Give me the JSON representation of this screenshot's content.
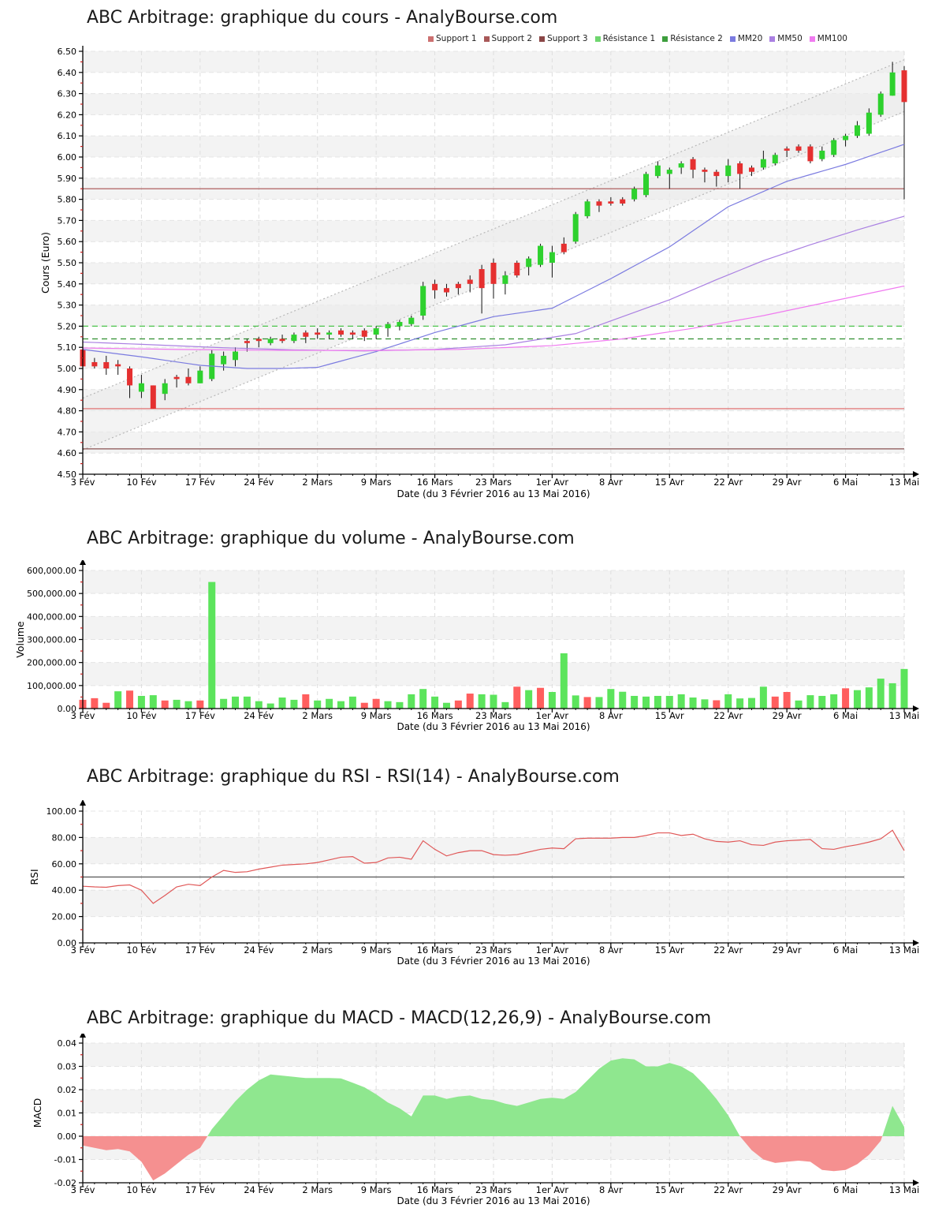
{
  "page": {
    "background": "#ffffff"
  },
  "shared": {
    "xlabel": "Date (du 3 Février 2016 au 13 Mai 2016)",
    "x_tick_labels": [
      "3 Fév",
      "10 Fév",
      "17 Fév",
      "24 Fév",
      "2 Mars",
      "9 Mars",
      "16 Mars",
      "23 Mars",
      "1er Avr",
      "8 Avr",
      "15 Avr",
      "22 Avr",
      "29 Avr",
      "6 Mai",
      "13 Mai"
    ],
    "x_tick_indices": [
      0,
      5,
      10,
      15,
      20,
      25,
      30,
      35,
      40,
      45,
      50,
      55,
      60,
      65,
      70
    ],
    "n_points": 71
  },
  "colors": {
    "candle_up": "#2ed12e",
    "candle_down": "#e53030",
    "wick": "#111111",
    "vol_up": "#5ce45c",
    "vol_down": "#ff5e5e",
    "mm20": "#7b7be0",
    "mm50": "#aa80e2",
    "mm100": "#f07bf0",
    "rsi_line": "#e05858",
    "rsi_mid": "#555555",
    "macd_pos": "#8fe78f",
    "macd_neg": "#f59090",
    "grid": "#e4e4e4",
    "vgrid": "#dedede",
    "stripe": "#f3f3f3",
    "axis": "#000000",
    "minor_tick": "#cc2222",
    "channel_fill": "#ebebeb",
    "channel_line": "#b8b8b8"
  },
  "chart_data": [
    {
      "id": "cours",
      "type": "candlestick",
      "title": "ABC Arbitrage: graphique du cours - AnalyBourse.com",
      "ylabel": "Cours (Euro)",
      "ymin": 4.5,
      "ymax": 6.5,
      "ystep": 0.1,
      "y_tick_labels": [
        "6.50",
        "6.40",
        "6.30",
        "6.20",
        "6.10",
        "6.00",
        "5.90",
        "5.80",
        "5.70",
        "5.60",
        "5.50",
        "5.40",
        "5.30",
        "5.20",
        "5.10",
        "5.00",
        "4.90",
        "4.80",
        "4.70",
        "4.60",
        "4.50"
      ],
      "legend": [
        {
          "label": "Support 1",
          "color": "#cc7070"
        },
        {
          "label": "Support 2",
          "color": "#a85858"
        },
        {
          "label": "Support 3",
          "color": "#8a4646"
        },
        {
          "label": "Résistance 1",
          "color": "#6fd66f"
        },
        {
          "label": "Résistance 2",
          "color": "#3d9e3d"
        },
        {
          "label": "MM20",
          "color": "#7b7be0"
        },
        {
          "label": "MM50",
          "color": "#aa80e2"
        },
        {
          "label": "MM100",
          "color": "#f07bf0"
        }
      ],
      "hlines": [
        {
          "name": "support-3",
          "value": 5.85,
          "color": "#a85050",
          "dash": false
        },
        {
          "name": "support-1",
          "value": 4.81,
          "color": "#e06464",
          "dash": false
        },
        {
          "name": "support-2",
          "value": 4.62,
          "color": "#8a5252",
          "dash": false
        },
        {
          "name": "resistance-1",
          "value": 5.2,
          "color": "#4bc44b",
          "dash": true
        },
        {
          "name": "resistance-2",
          "value": 5.14,
          "color": "#2f8f2f",
          "dash": true
        }
      ],
      "channel": {
        "top": [
          4.86,
          6.46
        ],
        "bottom": [
          4.615,
          6.215
        ]
      },
      "mm20_anchors": [
        [
          0,
          5.09
        ],
        [
          5,
          5.055
        ],
        [
          10,
          5.015
        ],
        [
          14,
          5.0
        ],
        [
          17,
          5.0
        ],
        [
          20,
          5.005
        ],
        [
          25,
          5.08
        ],
        [
          30,
          5.17
        ],
        [
          35,
          5.245
        ],
        [
          40,
          5.285
        ],
        [
          45,
          5.425
        ],
        [
          50,
          5.575
        ],
        [
          55,
          5.765
        ],
        [
          60,
          5.885
        ],
        [
          65,
          5.965
        ],
        [
          70,
          6.06
        ]
      ],
      "mm50_anchors": [
        [
          0,
          5.125
        ],
        [
          6,
          5.112
        ],
        [
          12,
          5.098
        ],
        [
          18,
          5.088
        ],
        [
          24,
          5.083
        ],
        [
          30,
          5.09
        ],
        [
          36,
          5.112
        ],
        [
          42,
          5.165
        ],
        [
          46,
          5.245
        ],
        [
          50,
          5.325
        ],
        [
          54,
          5.42
        ],
        [
          58,
          5.51
        ],
        [
          62,
          5.585
        ],
        [
          66,
          5.655
        ],
        [
          70,
          5.72
        ]
      ],
      "mm100_anchors": [
        [
          0,
          5.097
        ],
        [
          8,
          5.09
        ],
        [
          16,
          5.086
        ],
        [
          24,
          5.085
        ],
        [
          32,
          5.09
        ],
        [
          40,
          5.108
        ],
        [
          46,
          5.14
        ],
        [
          52,
          5.19
        ],
        [
          58,
          5.25
        ],
        [
          64,
          5.32
        ],
        [
          70,
          5.39
        ]
      ],
      "candles_ohlc": [
        [
          5.09,
          5.1,
          4.99,
          5.01
        ],
        [
          5.03,
          5.05,
          5.0,
          5.01
        ],
        [
          5.03,
          5.06,
          4.97,
          5.0
        ],
        [
          5.02,
          5.04,
          4.97,
          5.01
        ],
        [
          5.0,
          5.01,
          4.86,
          4.92
        ],
        [
          4.89,
          4.97,
          4.86,
          4.93
        ],
        [
          4.92,
          4.92,
          4.81,
          4.81
        ],
        [
          4.88,
          4.95,
          4.85,
          4.93
        ],
        [
          4.96,
          4.97,
          4.91,
          4.95
        ],
        [
          4.96,
          5.0,
          4.92,
          4.93
        ],
        [
          4.93,
          5.01,
          4.93,
          4.99
        ],
        [
          4.95,
          5.09,
          4.94,
          5.07
        ],
        [
          5.02,
          5.08,
          4.99,
          5.06
        ],
        [
          5.04,
          5.1,
          5.01,
          5.08
        ],
        [
          5.13,
          5.14,
          5.08,
          5.12
        ],
        [
          5.14,
          5.15,
          5.1,
          5.13
        ],
        [
          5.12,
          5.15,
          5.11,
          5.14
        ],
        [
          5.14,
          5.16,
          5.12,
          5.13
        ],
        [
          5.13,
          5.17,
          5.12,
          5.16
        ],
        [
          5.17,
          5.18,
          5.12,
          5.15
        ],
        [
          5.17,
          5.19,
          5.14,
          5.16
        ],
        [
          5.16,
          5.18,
          5.14,
          5.17
        ],
        [
          5.18,
          5.19,
          5.15,
          5.16
        ],
        [
          5.17,
          5.18,
          5.14,
          5.16
        ],
        [
          5.18,
          5.19,
          5.13,
          5.15
        ],
        [
          5.16,
          5.2,
          5.14,
          5.19
        ],
        [
          5.19,
          5.22,
          5.15,
          5.21
        ],
        [
          5.2,
          5.23,
          5.18,
          5.22
        ],
        [
          5.21,
          5.25,
          5.2,
          5.24
        ],
        [
          5.25,
          5.41,
          5.23,
          5.39
        ],
        [
          5.4,
          5.42,
          5.33,
          5.37
        ],
        [
          5.38,
          5.4,
          5.34,
          5.36
        ],
        [
          5.4,
          5.41,
          5.35,
          5.38
        ],
        [
          5.42,
          5.44,
          5.36,
          5.4
        ],
        [
          5.47,
          5.49,
          5.26,
          5.38
        ],
        [
          5.5,
          5.52,
          5.33,
          5.4
        ],
        [
          5.4,
          5.46,
          5.35,
          5.44
        ],
        [
          5.5,
          5.51,
          5.43,
          5.44
        ],
        [
          5.48,
          5.53,
          5.44,
          5.52
        ],
        [
          5.49,
          5.59,
          5.48,
          5.58
        ],
        [
          5.5,
          5.58,
          5.43,
          5.55
        ],
        [
          5.59,
          5.62,
          5.54,
          5.55
        ],
        [
          5.6,
          5.74,
          5.59,
          5.73
        ],
        [
          5.72,
          5.8,
          5.71,
          5.79
        ],
        [
          5.79,
          5.8,
          5.74,
          5.77
        ],
        [
          5.79,
          5.81,
          5.77,
          5.78
        ],
        [
          5.8,
          5.81,
          5.77,
          5.78
        ],
        [
          5.8,
          5.86,
          5.79,
          5.85
        ],
        [
          5.82,
          5.93,
          5.81,
          5.92
        ],
        [
          5.91,
          5.98,
          5.9,
          5.96
        ],
        [
          5.92,
          5.95,
          5.85,
          5.94
        ],
        [
          5.95,
          5.98,
          5.92,
          5.97
        ],
        [
          5.99,
          6.0,
          5.9,
          5.94
        ],
        [
          5.94,
          5.95,
          5.88,
          5.93
        ],
        [
          5.93,
          5.94,
          5.86,
          5.91
        ],
        [
          5.91,
          5.99,
          5.88,
          5.96
        ],
        [
          5.97,
          5.98,
          5.85,
          5.92
        ],
        [
          5.95,
          5.96,
          5.91,
          5.93
        ],
        [
          5.95,
          6.03,
          5.94,
          5.99
        ],
        [
          5.97,
          6.02,
          5.96,
          6.01
        ],
        [
          6.04,
          6.05,
          6.0,
          6.03
        ],
        [
          6.05,
          6.06,
          6.02,
          6.03
        ],
        [
          6.05,
          6.06,
          5.97,
          5.98
        ],
        [
          5.99,
          6.05,
          5.98,
          6.03
        ],
        [
          6.01,
          6.09,
          6.0,
          6.08
        ],
        [
          6.08,
          6.11,
          6.05,
          6.1
        ],
        [
          6.1,
          6.17,
          6.09,
          6.15
        ],
        [
          6.11,
          6.23,
          6.1,
          6.21
        ],
        [
          6.2,
          6.31,
          6.19,
          6.3
        ],
        [
          6.29,
          6.45,
          6.29,
          6.4
        ],
        [
          6.41,
          6.43,
          5.8,
          6.26
        ]
      ]
    },
    {
      "id": "volume",
      "type": "bar",
      "title": "ABC Arbitrage: graphique du volume - AnalyBourse.com",
      "ylabel": "Volume",
      "ymin": 0,
      "ymax": 600000,
      "ystep": 100000,
      "y_tick_labels": [
        "600,000.00",
        "500,000.00",
        "400,000.00",
        "300,000.00",
        "200,000.00",
        "100,000.00",
        "0.00"
      ],
      "values_thousands": [
        38,
        45,
        25,
        75,
        78,
        55,
        58,
        35,
        38,
        32,
        35,
        550,
        42,
        52,
        52,
        32,
        22,
        48,
        38,
        62,
        35,
        42,
        32,
        52,
        25,
        42,
        32,
        28,
        62,
        85,
        52,
        25,
        35,
        65,
        62,
        60,
        28,
        95,
        80,
        90,
        72,
        240,
        57,
        50,
        50,
        85,
        73,
        55,
        52,
        55,
        55,
        62,
        48,
        40,
        36,
        62,
        44,
        46,
        95,
        52,
        72,
        35,
        58,
        55,
        62,
        88,
        80,
        92,
        130,
        110,
        172
      ],
      "signs": "ddduduuduuduuuuuuuuduuuudduuuuuudduuududuuuduuuuuuuuuuduuuudduuuuduuuuuud"
    },
    {
      "id": "rsi",
      "type": "line",
      "title": "ABC Arbitrage: graphique du RSI - RSI(14) - AnalyBourse.com",
      "ylabel": "RSI",
      "ymin": 0,
      "ymax": 100,
      "ystep": 20,
      "y_tick_labels": [
        "100.00",
        "80.00",
        "60.00",
        "40.00",
        "20.00",
        "0.00"
      ],
      "midline": 50,
      "values": [
        43,
        42.5,
        42.2,
        43.5,
        44,
        40,
        30,
        36,
        42.5,
        44.5,
        43.5,
        50,
        55,
        53.5,
        54,
        56,
        57.5,
        59,
        59.5,
        60,
        61,
        63,
        65,
        65.5,
        60.5,
        61,
        64.5,
        65,
        63.5,
        77.5,
        71,
        66,
        68.5,
        70,
        70,
        67,
        66.5,
        67,
        69,
        71,
        72,
        71.5,
        79,
        79.5,
        79.5,
        79.5,
        80,
        80,
        81.5,
        83.5,
        83.5,
        81.5,
        82.5,
        79,
        77,
        76.5,
        77.5,
        74.5,
        74,
        76.5,
        77.5,
        78,
        78.5,
        71.5,
        71,
        73,
        74.5,
        76.5,
        79,
        85.5,
        70
      ]
    },
    {
      "id": "macd",
      "type": "area",
      "title": "ABC Arbitrage: graphique du MACD - MACD(12,26,9) - AnalyBourse.com",
      "ylabel": "MACD",
      "ymin": -0.02,
      "ymax": 0.04,
      "ystep": 0.01,
      "y_tick_labels": [
        "0.04",
        "0.03",
        "0.02",
        "0.01",
        "0.00",
        "-0.01",
        "-0.02"
      ],
      "values": [
        -0.004,
        -0.005,
        -0.006,
        -0.0055,
        -0.0065,
        -0.011,
        -0.019,
        -0.016,
        -0.012,
        -0.008,
        -0.005,
        0.003,
        0.009,
        0.015,
        0.02,
        0.024,
        0.0265,
        0.026,
        0.0255,
        0.025,
        0.025,
        0.025,
        0.0248,
        0.023,
        0.021,
        0.018,
        0.0145,
        0.012,
        0.0085,
        0.0175,
        0.0175,
        0.016,
        0.017,
        0.0175,
        0.016,
        0.0155,
        0.014,
        0.013,
        0.0145,
        0.016,
        0.0165,
        0.016,
        0.019,
        0.024,
        0.029,
        0.0325,
        0.0335,
        0.033,
        0.03,
        0.03,
        0.0315,
        0.03,
        0.027,
        0.022,
        0.016,
        0.009,
        0.0,
        -0.006,
        -0.01,
        -0.0115,
        -0.011,
        -0.0105,
        -0.011,
        -0.0145,
        -0.015,
        -0.0145,
        -0.012,
        -0.008,
        -0.002,
        0.013,
        0.004
      ]
    }
  ]
}
